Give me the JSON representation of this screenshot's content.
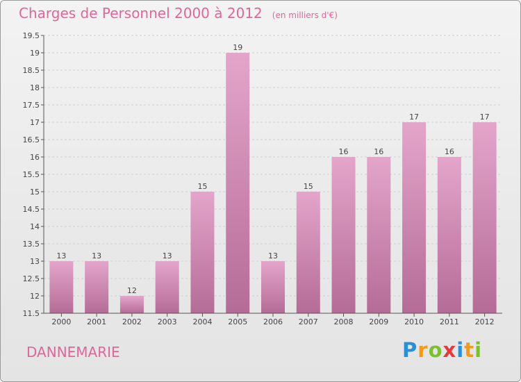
{
  "header": {
    "title": "Charges de Personnel 2000 à 2012",
    "subtitle": "(en milliers d'€)"
  },
  "footer": {
    "commune": "DANNEMARIE",
    "logo_letters": [
      {
        "char": "P",
        "color": "#2a8fd6"
      },
      {
        "char": "r",
        "color": "#f29a1a"
      },
      {
        "char": "o",
        "color": "#7cbf2f"
      },
      {
        "char": "x",
        "color": "#e23b3b"
      },
      {
        "char": "i",
        "color": "#2a8fd6"
      },
      {
        "char": "t",
        "color": "#f29a1a"
      },
      {
        "char": "i",
        "color": "#7cbf2f"
      }
    ]
  },
  "chart_data": {
    "type": "bar",
    "title": "Charges de Personnel 2000 à 2012",
    "subtitle": "(en milliers d'€)",
    "categories": [
      "2000",
      "2001",
      "2002",
      "2003",
      "2004",
      "2005",
      "2006",
      "2007",
      "2008",
      "2009",
      "2010",
      "2011",
      "2012"
    ],
    "values": [
      13,
      13,
      12,
      13,
      15,
      19,
      13,
      15,
      16,
      16,
      17,
      16,
      17
    ],
    "value_labels": [
      "13",
      "13",
      "12",
      "13",
      "15",
      "19",
      "13",
      "15",
      "16",
      "16",
      "17",
      "16",
      "17"
    ],
    "xlabel": "",
    "ylabel": "",
    "ylim": [
      11.5,
      19.5
    ],
    "yticks": [
      11.5,
      12,
      12.5,
      13,
      13.5,
      14,
      14.5,
      15,
      15.5,
      16,
      16.5,
      17,
      17.5,
      18,
      18.5,
      19,
      19.5
    ],
    "ytick_labels": [
      "11.5",
      "12",
      "12.5",
      "13",
      "13.5",
      "14",
      "14.5",
      "15",
      "15.5",
      "16",
      "16.5",
      "17",
      "17.5",
      "18",
      "18.5",
      "19",
      "19.5"
    ],
    "grid": true,
    "bar_color_top": "#e4a5cb",
    "bar_color_bottom": "#b46c96"
  }
}
